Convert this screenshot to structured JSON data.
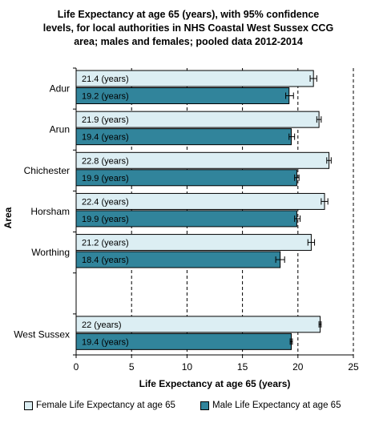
{
  "chart_data": {
    "type": "bar",
    "orientation": "horizontal",
    "title": "Life Expectancy at age 65 (years), with 95% confidence levels, for local authorities in NHS Coastal West Sussex CCG area; males and females; pooled data 2012-2014",
    "title_lines": [
      "Life Expectancy at age 65 (years), with 95% confidence",
      "levels, for local authorities in NHS Coastal West Sussex CCG",
      "area; males and females; pooled data 2012-2014"
    ],
    "xlabel": "Life Expectancy at age 65 (years)",
    "ylabel": "Area",
    "xlim": [
      0,
      25
    ],
    "xticks": [
      0,
      5,
      10,
      15,
      20,
      25
    ],
    "grid": "vertical-dashed",
    "legend_position": "bottom",
    "categories": [
      "Adur",
      "Arun",
      "Chichester",
      "Horsham",
      "Worthing",
      "",
      "West Sussex"
    ],
    "series": [
      {
        "name": "Female Life Expectancy at age 65",
        "color": "#dceef3",
        "values": [
          21.4,
          21.9,
          22.8,
          22.4,
          21.2,
          null,
          22
        ],
        "ci_low": [
          21.1,
          21.7,
          22.6,
          22.1,
          20.9,
          null,
          21.9
        ],
        "ci_high": [
          21.7,
          22.1,
          23.0,
          22.7,
          21.5,
          null,
          22.1
        ],
        "labels": [
          "21.4 (years)",
          "21.9 (years)",
          "22.8 (years)",
          "22.4 (years)",
          "21.2 (years)",
          "",
          "22 (years)"
        ]
      },
      {
        "name": "Male Life Expectancy at age 65",
        "color": "#31849b",
        "values": [
          19.2,
          19.4,
          19.9,
          19.9,
          18.4,
          null,
          19.4
        ],
        "ci_low": [
          18.9,
          19.2,
          19.7,
          19.7,
          18.0,
          null,
          19.3
        ],
        "ci_high": [
          19.6,
          19.7,
          20.1,
          20.2,
          18.8,
          null,
          19.5
        ],
        "labels": [
          "19.2 (years)",
          "19.4 (years)",
          "19.9 (years)",
          "19.9 (years)",
          "18.4 (years)",
          "",
          "19.4 (years)"
        ]
      }
    ]
  }
}
